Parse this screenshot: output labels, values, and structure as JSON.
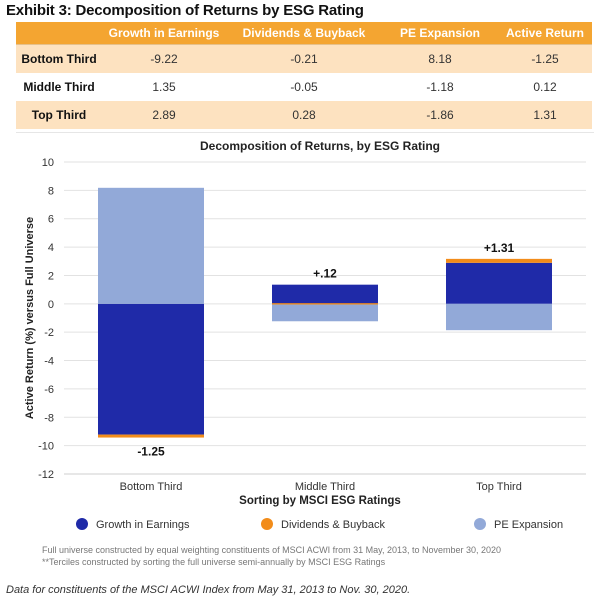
{
  "exhibit_title": "Exhibit 3: Decomposition of Returns by ESG Rating",
  "table": {
    "columns": [
      "",
      "Growth in Earnings",
      "Dividends & Buyback",
      "PE Expansion",
      "Active Return"
    ],
    "rows": [
      {
        "label": "Bottom Third",
        "values": [
          "-9.22",
          "-0.21",
          "8.18",
          "-1.25"
        ]
      },
      {
        "label": "Middle Third",
        "values": [
          "1.35",
          "-0.05",
          "-1.18",
          "0.12"
        ]
      },
      {
        "label": "Top Third",
        "values": [
          "2.89",
          "0.28",
          "-1.86",
          "1.31"
        ]
      }
    ]
  },
  "chart_data": {
    "type": "bar",
    "stacked": true,
    "title": "Decomposition of Returns, by ESG Rating",
    "xlabel": "Sorting by MSCI ESG Ratings",
    "ylabel": "Active Return (%) versus Full Universe",
    "ylim": [
      -12,
      10
    ],
    "yticks": [
      10,
      8,
      6,
      4,
      2,
      0,
      -2,
      -4,
      -6,
      -8,
      -10,
      -12
    ],
    "categories": [
      "Bottom Third",
      "Middle Third",
      "Top Third"
    ],
    "series": [
      {
        "name": "Growth in Earnings",
        "color": "#1f2aa8",
        "values": [
          -9.22,
          1.35,
          2.89
        ]
      },
      {
        "name": "Dividends & Buyback",
        "color": "#f28c1a",
        "values": [
          -0.21,
          -0.05,
          0.28
        ]
      },
      {
        "name": "PE Expansion",
        "color": "#92a9d8",
        "values": [
          8.18,
          -1.18,
          -1.86
        ]
      }
    ],
    "totals": [
      -1.25,
      0.12,
      1.31
    ],
    "total_labels": [
      "-1.25",
      "+.12",
      "+1.31"
    ],
    "notes": [
      "Full universe constructed by equal weighting constituents of MSCI ACWI from 31 May, 2013, to November 30, 2020",
      "**Terciles constructed by sorting the full universe semi-annually by MSCI ESG Ratings"
    ]
  },
  "footnote": "Data for constituents of the MSCI ACWI Index from May 31, 2013 to Nov. 30, 2020."
}
